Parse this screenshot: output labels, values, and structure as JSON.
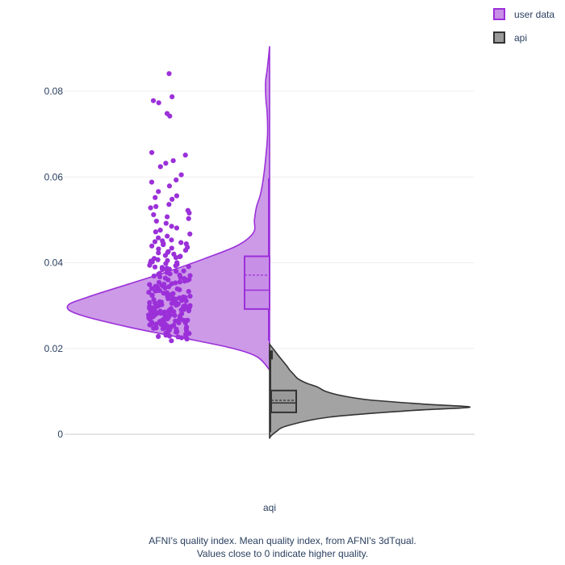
{
  "chart_data": {
    "type": "violin",
    "x_category": "aqi",
    "ylim": [
      -0.001,
      0.091
    ],
    "y_ticks": [
      0,
      0.02,
      0.04,
      0.06,
      0.08
    ],
    "y_tick_labels": [
      "0",
      "0.02",
      "0.04",
      "0.06",
      "0.08"
    ],
    "grid": true,
    "legend_position": "top-right",
    "series": [
      {
        "name": "user data",
        "side": "negative",
        "color": "#9b30d9",
        "fill": "#c88fe6",
        "box": {
          "q1": 0.0292,
          "median": 0.0336,
          "mean": 0.0371,
          "q3": 0.0415,
          "whisker_low": 0.0218,
          "whisker_high": 0.0597
        },
        "density": [
          [
            0.015,
            0.0
          ],
          [
            0.018,
            0.06
          ],
          [
            0.02,
            0.18
          ],
          [
            0.022,
            0.38
          ],
          [
            0.025,
            0.7
          ],
          [
            0.028,
            0.95
          ],
          [
            0.03,
            1.0
          ],
          [
            0.032,
            0.9
          ],
          [
            0.035,
            0.7
          ],
          [
            0.038,
            0.5
          ],
          [
            0.041,
            0.32
          ],
          [
            0.044,
            0.16
          ],
          [
            0.047,
            0.08
          ],
          [
            0.05,
            0.075
          ],
          [
            0.053,
            0.065
          ],
          [
            0.056,
            0.045
          ],
          [
            0.06,
            0.03
          ],
          [
            0.065,
            0.018
          ],
          [
            0.07,
            0.01
          ],
          [
            0.075,
            0.012
          ],
          [
            0.078,
            0.018
          ],
          [
            0.082,
            0.02
          ],
          [
            0.085,
            0.012
          ],
          [
            0.088,
            0.005
          ],
          [
            0.0905,
            0.0
          ]
        ],
        "points": [
          0.0841,
          0.0787,
          0.0778,
          0.0773,
          0.0748,
          0.0742,
          0.0657,
          0.0651,
          0.0638,
          0.0632,
          0.0624,
          0.0605,
          0.0593,
          0.0588,
          0.0579,
          0.0566,
          0.0556,
          0.0552,
          0.0548,
          0.0536,
          0.0531,
          0.0528,
          0.0522,
          0.0516,
          0.0512,
          0.0507,
          0.0503,
          0.0497,
          0.0492,
          0.0485,
          0.0481,
          0.0476,
          0.0472,
          0.0467,
          0.0462,
          0.0458,
          0.0453,
          0.0451,
          0.0449,
          0.0447,
          0.0445,
          0.0442,
          0.0439,
          0.0436,
          0.0432,
          0.0429,
          0.0426,
          0.0423,
          0.042,
          0.0417,
          0.0415,
          0.0412,
          0.041,
          0.0407,
          0.0405,
          0.0402,
          0.04,
          0.0398,
          0.0396,
          0.0393,
          0.0391,
          0.0389,
          0.0387,
          0.0385,
          0.0383,
          0.0381,
          0.0379,
          0.0377,
          0.0375,
          0.0373,
          0.0371,
          0.0369,
          0.0367,
          0.0365,
          0.0363,
          0.0361,
          0.0359,
          0.0357,
          0.0355,
          0.0353,
          0.0351,
          0.0349,
          0.0347,
          0.0345,
          0.0343,
          0.0341,
          0.0339,
          0.0337,
          0.0335,
          0.0333,
          0.0331,
          0.0329,
          0.0328,
          0.0326,
          0.0324,
          0.0322,
          0.0321,
          0.0319,
          0.0317,
          0.0316,
          0.0314,
          0.0312,
          0.0311,
          0.0309,
          0.0307,
          0.0306,
          0.0304,
          0.0303,
          0.0301,
          0.03,
          0.0299,
          0.0298,
          0.0297,
          0.0296,
          0.0295,
          0.0294,
          0.0293,
          0.0292,
          0.0291,
          0.029,
          0.0289,
          0.0288,
          0.0287,
          0.0286,
          0.0285,
          0.0284,
          0.0283,
          0.0282,
          0.0281,
          0.028,
          0.0279,
          0.0278,
          0.0277,
          0.0276,
          0.0275,
          0.0274,
          0.0273,
          0.0272,
          0.0271,
          0.027,
          0.0269,
          0.0268,
          0.0267,
          0.0266,
          0.0265,
          0.0264,
          0.0263,
          0.0262,
          0.0261,
          0.026,
          0.0259,
          0.0258,
          0.0257,
          0.0256,
          0.0255,
          0.0254,
          0.0253,
          0.0252,
          0.0251,
          0.025,
          0.0249,
          0.0248,
          0.0247,
          0.0246,
          0.0245,
          0.0243,
          0.0241,
          0.0239,
          0.0237,
          0.0235,
          0.0233,
          0.0231,
          0.0229,
          0.0227,
          0.0225,
          0.0222,
          0.0218,
          0.03,
          0.031,
          0.032,
          0.033,
          0.034,
          0.0295,
          0.0305,
          0.0315,
          0.0285,
          0.0275,
          0.029,
          0.028,
          0.027,
          0.0265,
          0.026,
          0.0255,
          0.035,
          0.036,
          0.037,
          0.038,
          0.039,
          0.04,
          0.0345,
          0.0335,
          0.0325,
          0.0302,
          0.0298,
          0.0288,
          0.0278,
          0.0268,
          0.0258,
          0.0248,
          0.0238,
          0.0228,
          0.0318,
          0.0308,
          0.0296,
          0.0286,
          0.0276,
          0.0266,
          0.0256,
          0.0246,
          0.0236,
          0.0226,
          0.0314,
          0.0324,
          0.0334,
          0.0344,
          0.0354,
          0.0364,
          0.0374,
          0.0384,
          0.0394,
          0.0404,
          0.0414,
          0.0424,
          0.0434,
          0.0444
        ]
      },
      {
        "name": "api",
        "side": "positive",
        "color": "#333333",
        "fill": "#999999",
        "box": {
          "q1": 0.0051,
          "median": 0.0073,
          "mean": 0.0079,
          "q3": 0.0102,
          "whisker_low": 0.0005,
          "whisker_high": 0.0178,
          "outliers": [
            0.0182,
            0.0188
          ]
        },
        "density": [
          [
            -0.001,
            0.0
          ],
          [
            -0.0005,
            0.005
          ],
          [
            0.0005,
            0.03
          ],
          [
            0.002,
            0.09
          ],
          [
            0.004,
            0.3
          ],
          [
            0.0055,
            0.7
          ],
          [
            0.0063,
            1.0
          ],
          [
            0.007,
            0.78
          ],
          [
            0.008,
            0.5
          ],
          [
            0.009,
            0.36
          ],
          [
            0.01,
            0.28
          ],
          [
            0.011,
            0.24
          ],
          [
            0.012,
            0.18
          ],
          [
            0.013,
            0.14
          ],
          [
            0.014,
            0.12
          ],
          [
            0.0145,
            0.11
          ],
          [
            0.015,
            0.1
          ],
          [
            0.016,
            0.085
          ],
          [
            0.018,
            0.05
          ],
          [
            0.0195,
            0.025
          ],
          [
            0.021,
            0.0
          ]
        ]
      }
    ]
  },
  "xaxis": {
    "label": "aqi"
  },
  "caption": {
    "line1": "AFNI's quality index. Mean quality index, from AFNI's 3dTqual.",
    "line2": "Values close to 0 indicate higher quality."
  }
}
